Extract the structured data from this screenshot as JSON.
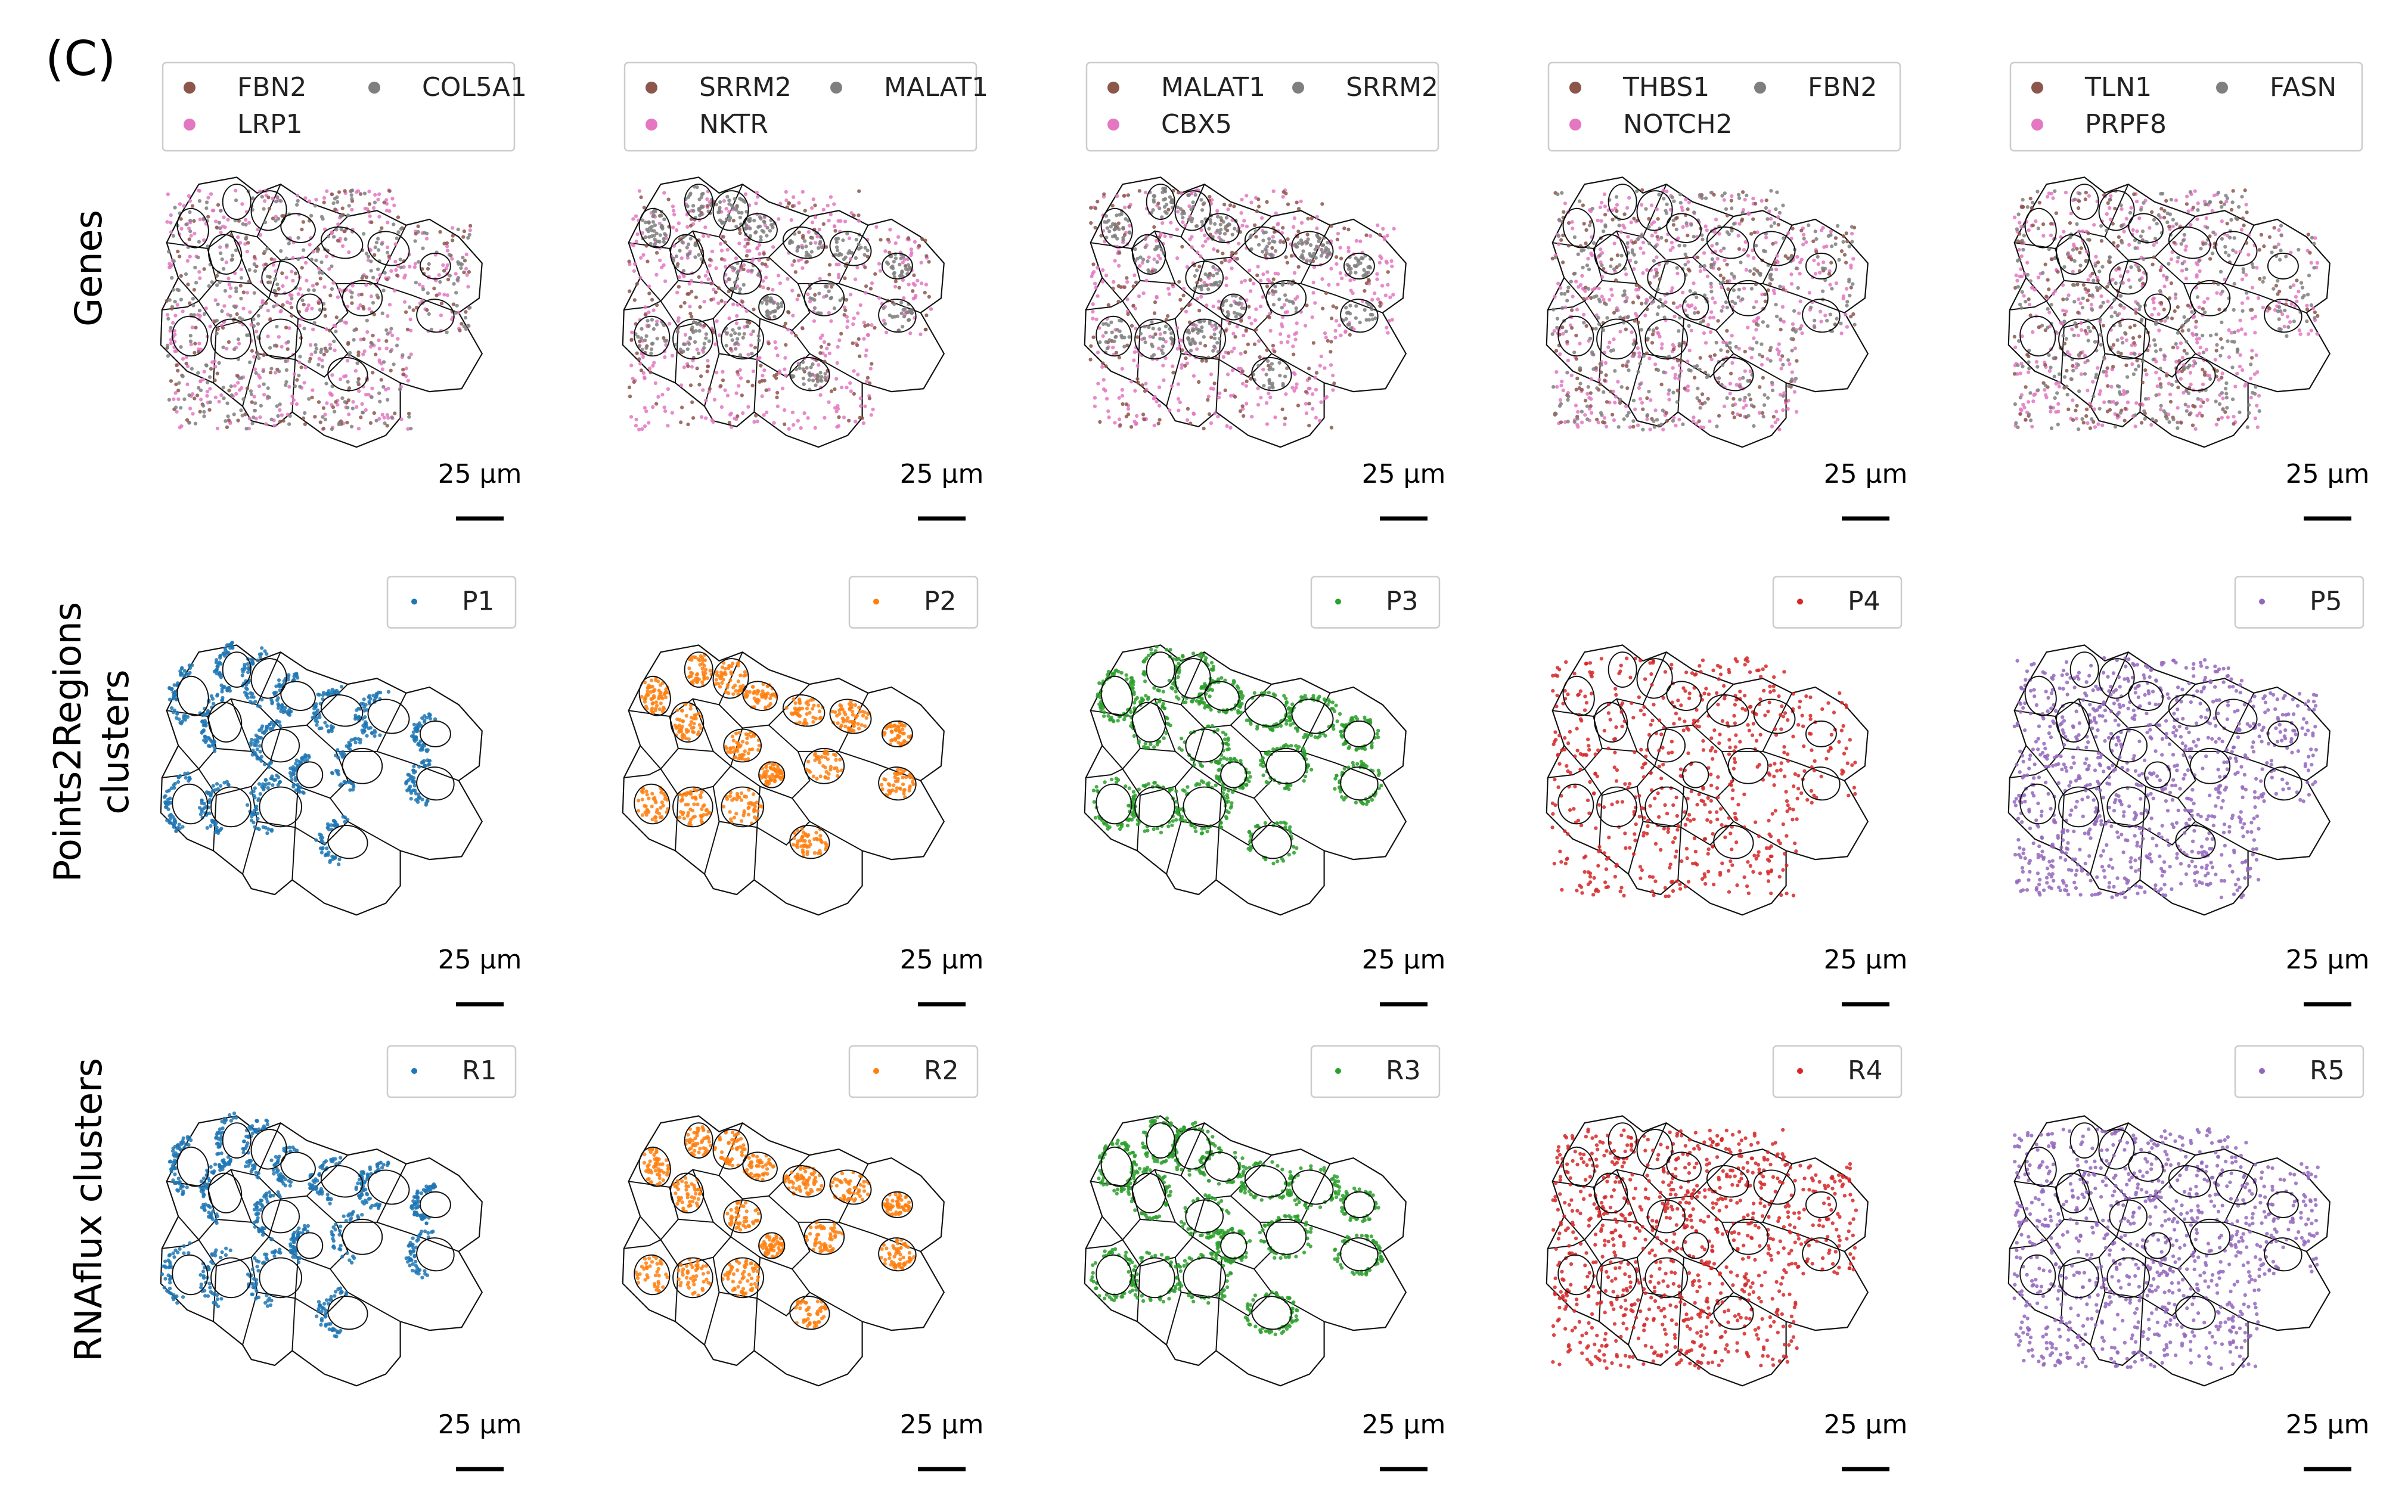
{
  "figure": {
    "panel_label": "(C)",
    "scale_bar_label": "25 µm",
    "rows": [
      {
        "label_lines": [
          "Genes"
        ],
        "panels": [
          {
            "legend": [
              {
                "name": "FBN2",
                "color": "#8c564b"
              },
              {
                "name": "COL5A1",
                "color": "#7f7f7f"
              },
              {
                "name": "LRP1",
                "color": "#e377c2"
              }
            ]
          },
          {
            "legend": [
              {
                "name": "SRRM2",
                "color": "#8c564b"
              },
              {
                "name": "MALAT1",
                "color": "#7f7f7f"
              },
              {
                "name": "NKTR",
                "color": "#e377c2"
              }
            ]
          },
          {
            "legend": [
              {
                "name": "MALAT1",
                "color": "#8c564b"
              },
              {
                "name": "SRRM2",
                "color": "#7f7f7f"
              },
              {
                "name": "CBX5",
                "color": "#e377c2"
              }
            ]
          },
          {
            "legend": [
              {
                "name": "THBS1",
                "color": "#8c564b"
              },
              {
                "name": "FBN2",
                "color": "#7f7f7f"
              },
              {
                "name": "NOTCH2",
                "color": "#e377c2"
              }
            ]
          },
          {
            "legend": [
              {
                "name": "TLN1",
                "color": "#8c564b"
              },
              {
                "name": "FASN",
                "color": "#7f7f7f"
              },
              {
                "name": "PRPF8",
                "color": "#e377c2"
              }
            ]
          }
        ]
      },
      {
        "label_lines": [
          "Points2Regions",
          "clusters"
        ],
        "panels": [
          {
            "legend": [
              {
                "name": "P1",
                "color": "#1f77b4"
              }
            ]
          },
          {
            "legend": [
              {
                "name": "P2",
                "color": "#ff7f0e"
              }
            ]
          },
          {
            "legend": [
              {
                "name": "P3",
                "color": "#2ca02c"
              }
            ]
          },
          {
            "legend": [
              {
                "name": "P4",
                "color": "#d62728"
              }
            ]
          },
          {
            "legend": [
              {
                "name": "P5",
                "color": "#9467bd"
              }
            ]
          }
        ]
      },
      {
        "label_lines": [
          "RNAflux clusters"
        ],
        "panels": [
          {
            "legend": [
              {
                "name": "R1",
                "color": "#1f77b4"
              }
            ]
          },
          {
            "legend": [
              {
                "name": "R2",
                "color": "#ff7f0e"
              }
            ]
          },
          {
            "legend": [
              {
                "name": "R3",
                "color": "#2ca02c"
              }
            ]
          },
          {
            "legend": [
              {
                "name": "R4",
                "color": "#d62728"
              }
            ]
          },
          {
            "legend": [
              {
                "name": "R5",
                "color": "#9467bd"
              }
            ]
          }
        ]
      }
    ]
  }
}
